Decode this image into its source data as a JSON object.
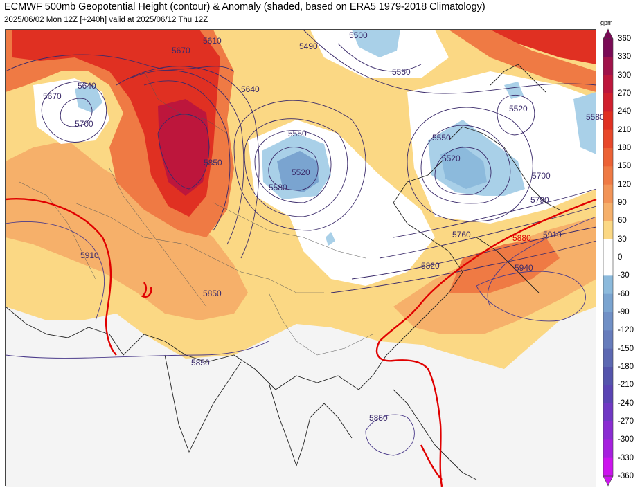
{
  "header": {
    "title": "ECMWF 500mb Geopotential Height (contour) & Anomaly (shaded, based on ERA5 1979-2018 Climatology)",
    "subtitle": "2025/06/02 Mon 12Z [+240h] valid at 2025/06/12 Thu 12Z"
  },
  "colorbar": {
    "unit": "gpm",
    "ticks": [
      "360",
      "330",
      "300",
      "270",
      "240",
      "210",
      "180",
      "150",
      "120",
      "90",
      "60",
      "30",
      "0",
      "-30",
      "-60",
      "-90",
      "-120",
      "-150",
      "-180",
      "-210",
      "-240",
      "-270",
      "-300",
      "-330",
      "-360"
    ],
    "colors": {
      "360": "#7a0a55",
      "330": "#a0124a",
      "300": "#bd163c",
      "270": "#d01f2e",
      "240": "#e03022",
      "210": "#e8482a",
      "180": "#ec6235",
      "150": "#ef7a44",
      "120": "#f29457",
      "90": "#f6b06a",
      "60": "#fbd884",
      "30": "#ffffff",
      "-30": "#a9d0e8",
      "-60": "#8cbadc",
      "-90": "#7aa4d0",
      "-120": "#7090c6",
      "-150": "#667cbc",
      "-180": "#5c68b2",
      "-210": "#5454ac",
      "-240": "#5a44b4",
      "-270": "#7038c4",
      "-300": "#8a2cd2",
      "-330": "#a620de",
      "-360": "#cc14ee"
    }
  },
  "map": {
    "contour_labels": [
      "5670",
      "5610",
      "5640",
      "5670",
      "5640",
      "5700",
      "5850",
      "5550",
      "5520",
      "5580",
      "5490",
      "5550",
      "5520",
      "5550",
      "5520",
      "5700",
      "5790",
      "5760",
      "5820",
      "5880",
      "5910",
      "5940",
      "5910",
      "5850",
      "5850",
      "5850",
      "5500",
      "5580"
    ],
    "highlight_contour": "5880"
  }
}
